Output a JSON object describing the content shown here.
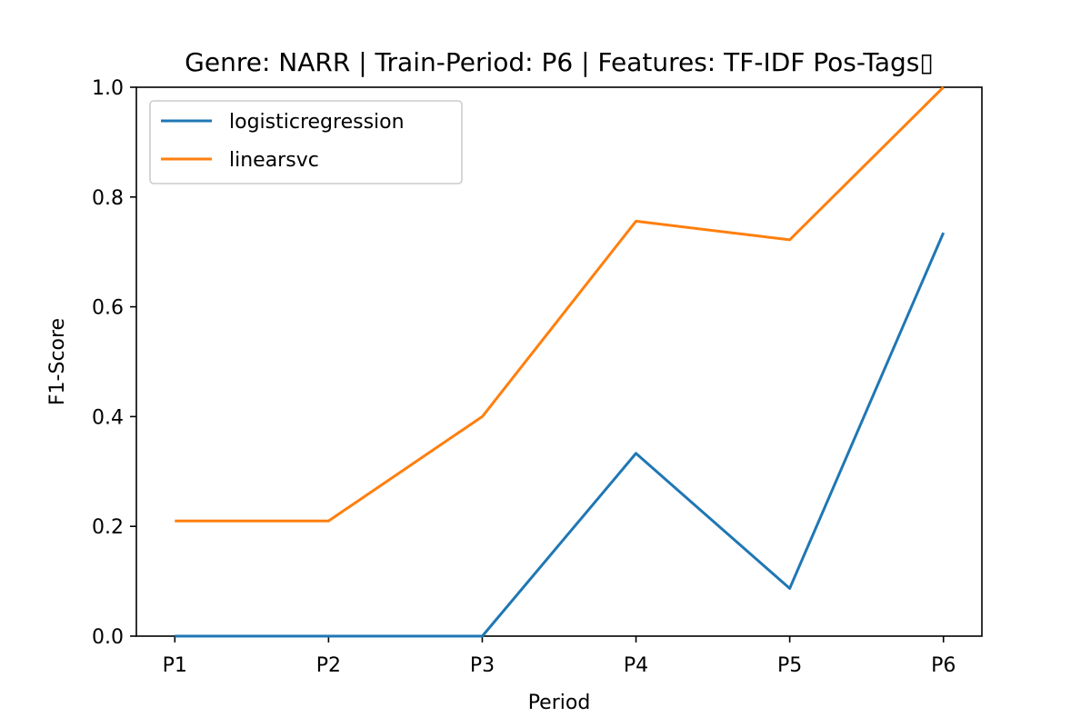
{
  "chart_data": {
    "type": "line",
    "title": "Genre: NARR | Train-Period: P6 | Features: TF-IDF Pos-Tags▯",
    "xlabel": "Period",
    "ylabel": "F1-Score",
    "categories": [
      "P1",
      "P2",
      "P3",
      "P4",
      "P5",
      "P6"
    ],
    "ylim": [
      0,
      1.0
    ],
    "yticks": [
      "0.0",
      "0.2",
      "0.4",
      "0.6",
      "0.8",
      "1.0"
    ],
    "grid": false,
    "legend_position": "top-left",
    "series": [
      {
        "name": "logisticregression",
        "color": "#1f77b4",
        "values": [
          0.0,
          0.0,
          0.0,
          0.333,
          0.087,
          0.735
        ]
      },
      {
        "name": "linearsvc",
        "color": "#ff7f0e",
        "values": [
          0.21,
          0.21,
          0.4,
          0.756,
          0.722,
          1.0
        ]
      }
    ]
  }
}
